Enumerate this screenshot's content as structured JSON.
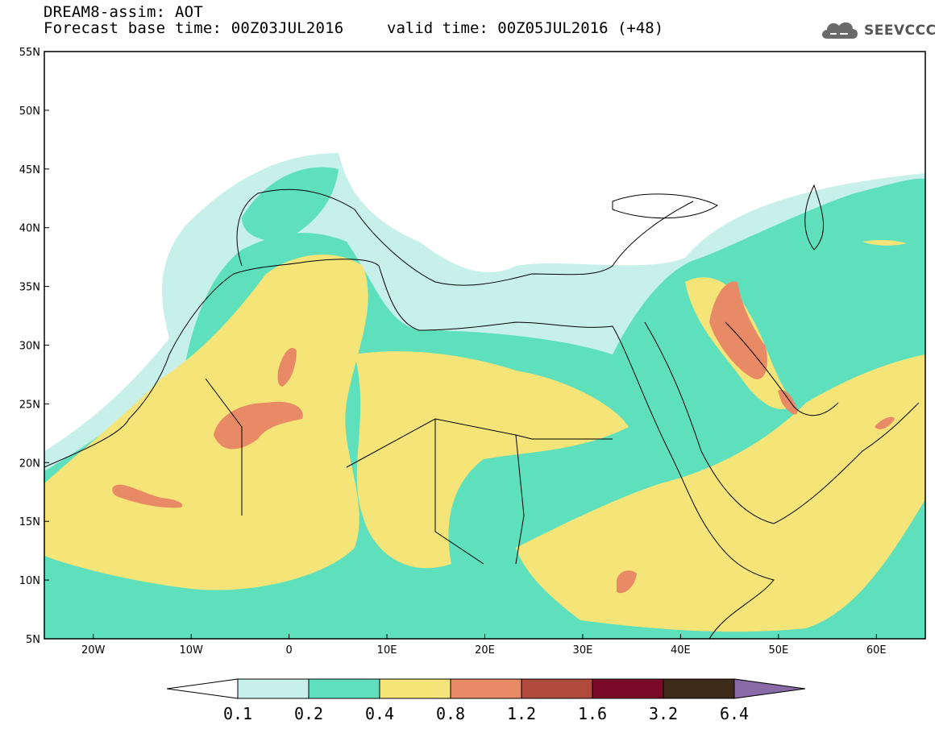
{
  "header": {
    "model_line": "DREAM8-assim: AOT",
    "base_time_line": "Forecast base time: 00Z03JUL2016",
    "valid_time_line": "valid time: 00Z05JUL2016 (+48)"
  },
  "logo": {
    "text": "SEEVCCC",
    "icon": "cloud-logo-icon"
  },
  "map": {
    "lat_range": [
      5,
      55
    ],
    "lon_range": [
      -25,
      65
    ],
    "lat_labels": [
      "55N",
      "50N",
      "45N",
      "40N",
      "35N",
      "30N",
      "25N",
      "20N",
      "15N",
      "10N",
      "5N"
    ],
    "lon_labels": [
      "20W",
      "10W",
      "0",
      "10E",
      "20E",
      "30E",
      "40E",
      "50E",
      "60E"
    ]
  },
  "colorbar": {
    "levels": [
      "0.1",
      "0.2",
      "0.4",
      "0.8",
      "1.2",
      "1.6",
      "3.2",
      "6.4"
    ],
    "colors": [
      "#c8f0ea",
      "#5fe0bd",
      "#f5e477",
      "#e88a66",
      "#b04a3c",
      "#7a0a28",
      "#3e2a18",
      "#8b6aa8"
    ],
    "under_color": "#ffffff"
  }
}
